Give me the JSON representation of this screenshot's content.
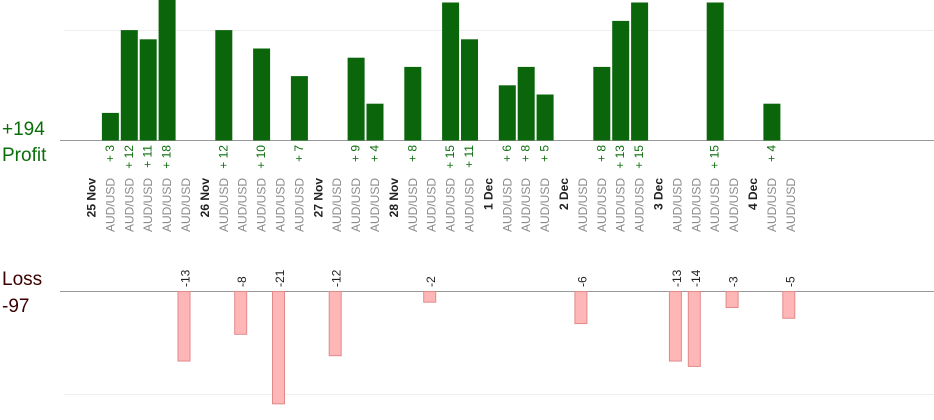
{
  "summary": {
    "profit_value": "+194",
    "profit_label": "Profit",
    "loss_label": "Loss",
    "loss_value": "-97"
  },
  "colors": {
    "profit_bar": "#0b660b",
    "profit_text": "#0b6e0b",
    "loss_bar": "#ffb6b6",
    "loss_border": "#e08a8a",
    "loss_text": "#3b0000",
    "axis": "#999999",
    "grid": "#eeeeee"
  },
  "chart_data": {
    "type": "bar",
    "grid": true,
    "legend": "none",
    "profit_ylim": [
      0,
      12
    ],
    "loss_ylim": [
      0,
      10
    ],
    "slots": [
      {
        "kind": "date",
        "label": "25 Nov"
      },
      {
        "kind": "trade",
        "label": "AUD/USD",
        "value": 3
      },
      {
        "kind": "trade",
        "label": "AUD/USD",
        "value": 12
      },
      {
        "kind": "trade",
        "label": "AUD/USD",
        "value": 11
      },
      {
        "kind": "trade",
        "label": "AUD/USD",
        "value": 18
      },
      {
        "kind": "trade",
        "label": "AUD/USD",
        "value": -13
      },
      {
        "kind": "date",
        "label": "26 Nov"
      },
      {
        "kind": "trade",
        "label": "AUD/USD",
        "value": 12
      },
      {
        "kind": "trade",
        "label": "AUD/USD",
        "value": -8
      },
      {
        "kind": "trade",
        "label": "AUD/USD",
        "value": 10
      },
      {
        "kind": "trade",
        "label": "AUD/USD",
        "value": -21
      },
      {
        "kind": "trade",
        "label": "AUD/USD",
        "value": 7
      },
      {
        "kind": "date",
        "label": "27 Nov"
      },
      {
        "kind": "trade",
        "label": "AUD/USD",
        "value": -12
      },
      {
        "kind": "trade",
        "label": "AUD/USD",
        "value": 9
      },
      {
        "kind": "trade",
        "label": "AUD/USD",
        "value": 4
      },
      {
        "kind": "date",
        "label": "28 Nov"
      },
      {
        "kind": "trade",
        "label": "AUD/USD",
        "value": 8
      },
      {
        "kind": "trade",
        "label": "AUD/USD",
        "value": -2
      },
      {
        "kind": "trade",
        "label": "AUD/USD",
        "value": 15
      },
      {
        "kind": "trade",
        "label": "AUD/USD",
        "value": 11
      },
      {
        "kind": "date",
        "label": "1 Dec"
      },
      {
        "kind": "trade",
        "label": "AUD/USD",
        "value": 6
      },
      {
        "kind": "trade",
        "label": "AUD/USD",
        "value": 8
      },
      {
        "kind": "trade",
        "label": "AUD/USD",
        "value": 5
      },
      {
        "kind": "date",
        "label": "2 Dec"
      },
      {
        "kind": "trade",
        "label": "AUD/USD",
        "value": -6
      },
      {
        "kind": "trade",
        "label": "AUD/USD",
        "value": 8
      },
      {
        "kind": "trade",
        "label": "AUD/USD",
        "value": 13
      },
      {
        "kind": "trade",
        "label": "AUD/USD",
        "value": 15
      },
      {
        "kind": "date",
        "label": "3 Dec"
      },
      {
        "kind": "trade",
        "label": "AUD/USD",
        "value": -13
      },
      {
        "kind": "trade",
        "label": "AUD/USD",
        "value": -14
      },
      {
        "kind": "trade",
        "label": "AUD/USD",
        "value": 15
      },
      {
        "kind": "trade",
        "label": "AUD/USD",
        "value": -3
      },
      {
        "kind": "date",
        "label": "4 Dec"
      },
      {
        "kind": "trade",
        "label": "AUD/USD",
        "value": 4
      },
      {
        "kind": "trade",
        "label": "AUD/USD",
        "value": -5
      }
    ]
  }
}
